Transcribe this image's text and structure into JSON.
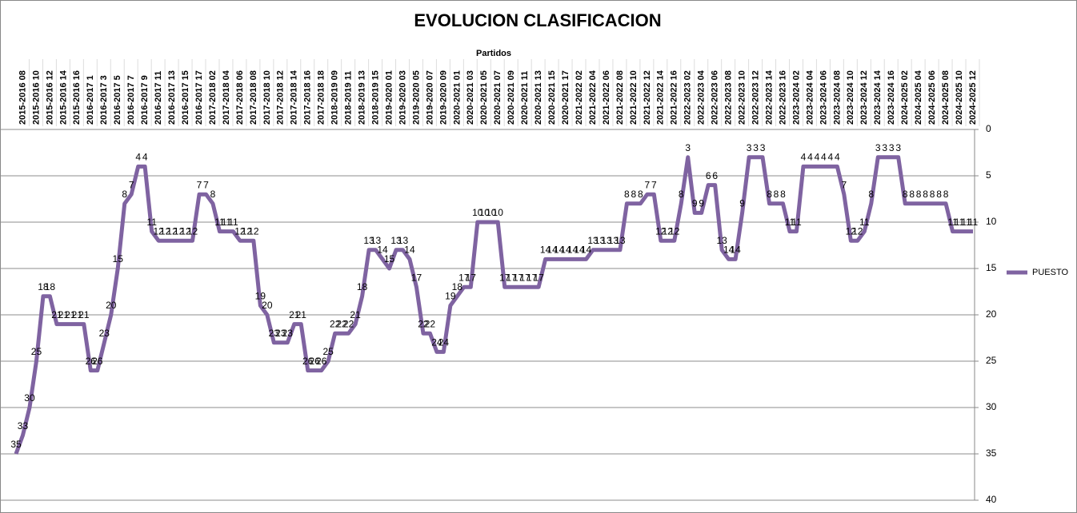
{
  "chart_data": {
    "type": "line",
    "title": "EVOLUCION CLASIFICACION",
    "x_label": "Partidos",
    "categories": [
      null,
      "2015-2016 08",
      null,
      "2015-2016 10",
      null,
      "2015-2016 12",
      null,
      "2015-2016 14",
      null,
      "2015-2016 16",
      null,
      "2016-2017 1",
      null,
      "2016-2017 3",
      null,
      "2016-2017 5",
      null,
      "2016-2017 7",
      null,
      "2016-2017 9",
      null,
      "2016-2017 11",
      null,
      "2016-2017 13",
      null,
      "2016-2017 15",
      null,
      "2016-2017 17",
      null,
      "2017-2018 02",
      null,
      "2017-2018 04",
      null,
      "2017-2018 06",
      null,
      "2017-2018 08",
      null,
      "2017-2018 10",
      null,
      "2017-2018 12",
      null,
      "2017-2018 14",
      null,
      "2017-2018 16",
      null,
      "2017-2018 18",
      null,
      "2018-2019 09",
      null,
      "2018-2019 11",
      null,
      "2018-2019 13",
      null,
      "2018-2019 15",
      null,
      "2019-2020 01",
      null,
      "2019-2020 03",
      null,
      "2019-2020 05",
      null,
      "2019-2020 07",
      null,
      "2019-2020 09",
      null,
      "2020-2021 01",
      null,
      "2020-2021 03",
      null,
      "2020-2021 05",
      null,
      "2020-2021 07",
      null,
      "2020-2021 09",
      null,
      "2020-2021 11",
      null,
      "2020-2021 13",
      null,
      "2020-2021 15",
      null,
      "2020-2021 17",
      null,
      "2021-2022 02",
      null,
      "2021-2022 04",
      null,
      "2021-2022 06",
      null,
      "2021-2022 08",
      null,
      "2021-2022 10",
      null,
      "2021-2022 12",
      null,
      "2021-2022 14",
      null,
      "2021-2022 16",
      null,
      "2022-2023 02",
      null,
      "2022-2023 04",
      null,
      "2022-2023 06",
      null,
      "2022-2023 08",
      null,
      "2022-2023 10",
      null,
      "2022-2023 12",
      null,
      "2022-2023 14",
      null,
      "2022-2023 16",
      null,
      "2023-2024 02",
      null,
      "2023-2024 04",
      null,
      "2023-2024 06",
      null,
      "2023-2024 08",
      null,
      "2023-2024 10",
      null,
      "2023-2024 12",
      null,
      "2023-2024 14",
      null,
      "2023-2024 16",
      null,
      "2024-2025 02",
      null,
      "2024-2025 04",
      null,
      "2024-2025 06",
      null,
      "2024-2025 08",
      null,
      "2024-2025 10",
      null,
      "2024-2025 12"
    ],
    "series": [
      {
        "name": "PUESTO",
        "color": "#7f63a1",
        "values": [
          35,
          33,
          30,
          25,
          18,
          18,
          21,
          21,
          21,
          21,
          21,
          26,
          26,
          23,
          20,
          15,
          8,
          7,
          4,
          4,
          11,
          12,
          12,
          12,
          12,
          12,
          12,
          7,
          7,
          8,
          11,
          11,
          11,
          12,
          12,
          12,
          19,
          20,
          23,
          23,
          23,
          21,
          21,
          26,
          26,
          26,
          25,
          22,
          22,
          22,
          21,
          18,
          13,
          13,
          14,
          15,
          13,
          13,
          14,
          17,
          22,
          22,
          24,
          24,
          19,
          18,
          17,
          17,
          10,
          10,
          10,
          10,
          17,
          17,
          17,
          17,
          17,
          17,
          14,
          14,
          14,
          14,
          14,
          14,
          14,
          13,
          13,
          13,
          13,
          13,
          8,
          8,
          8,
          7,
          7,
          12,
          12,
          12,
          8,
          3,
          9,
          9,
          6,
          6,
          13,
          14,
          14,
          9,
          3,
          3,
          3,
          8,
          8,
          8,
          11,
          11,
          4,
          4,
          4,
          4,
          4,
          4,
          7,
          12,
          12,
          11,
          8,
          3,
          3,
          3,
          3,
          8,
          8,
          8,
          8,
          8,
          8,
          8,
          11,
          11,
          11,
          11
        ]
      }
    ],
    "ylim": [
      0,
      40
    ],
    "yticks": [
      0,
      5,
      10,
      15,
      20,
      25,
      30,
      35,
      40
    ],
    "y_inverted": true,
    "grid": true,
    "legend": "right"
  }
}
